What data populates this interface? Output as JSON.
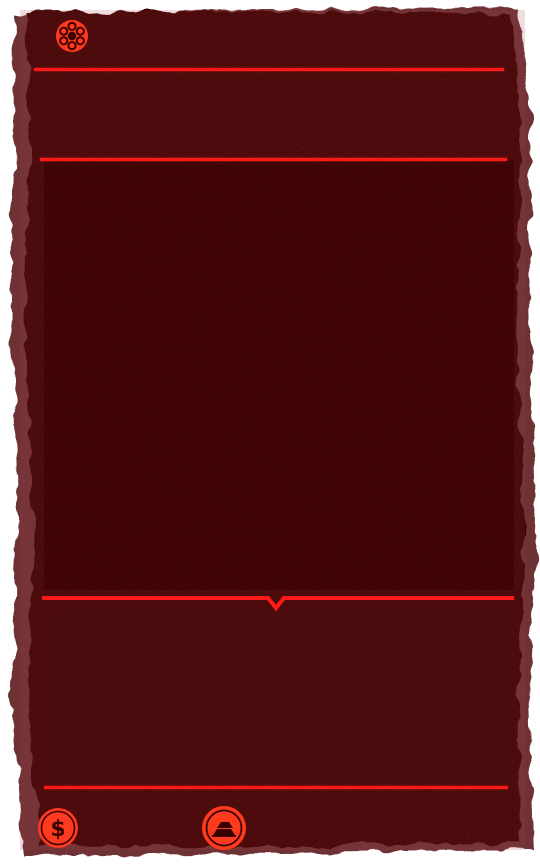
{
  "hud": {
    "top_left_icon": "revolver-cylinder-icon",
    "bottom_icons": [
      "dollar-coin-icon",
      "gold-bars-icon"
    ]
  },
  "colors": {
    "panel": "#3a0003",
    "panel_edge": "#6b2a2d",
    "accent": "#ff1a1a",
    "icon_fill": "#ff3b1f"
  }
}
